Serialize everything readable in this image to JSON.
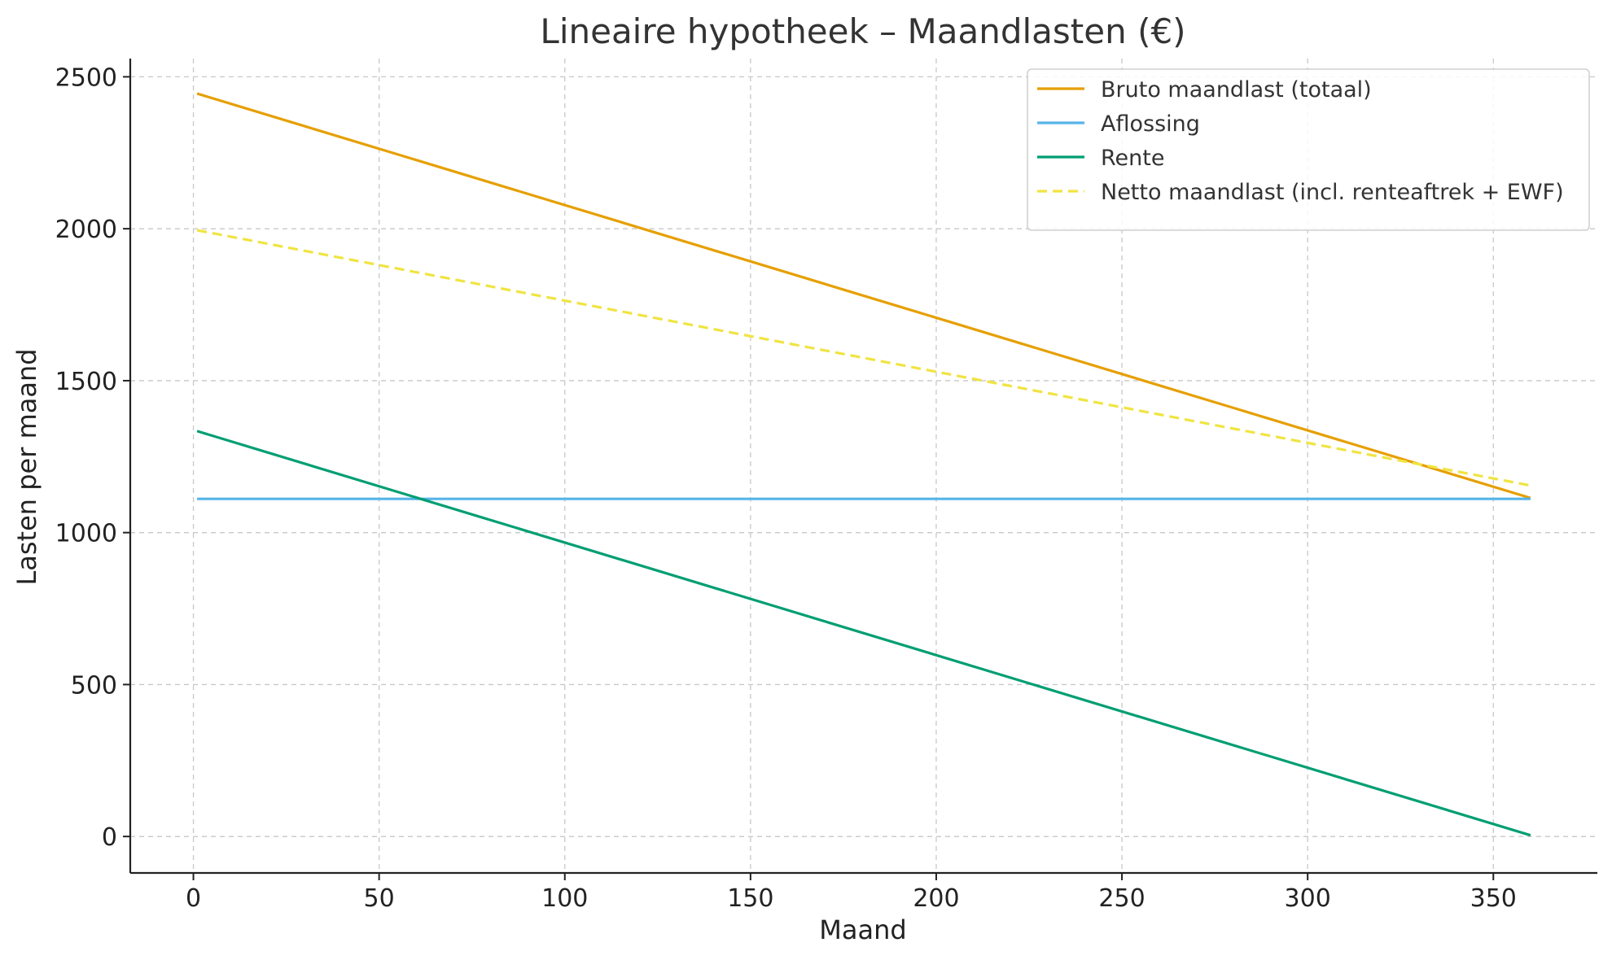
{
  "chart_data": {
    "type": "line",
    "title": "Lineaire hypotheek – Maandlasten (€)",
    "xlabel": "Maand",
    "ylabel": "Lasten per maand",
    "xlim": [
      -17,
      378
    ],
    "ylim": [
      -120,
      2560
    ],
    "xticks": [
      0,
      50,
      100,
      150,
      200,
      250,
      300,
      350
    ],
    "yticks": [
      0,
      500,
      1000,
      1500,
      2000,
      2500
    ],
    "grid": true,
    "legend_position": "top-right",
    "series": [
      {
        "name": "Bruto maandlast (totaal)",
        "color": "#E69F00",
        "dash": "solid",
        "x": [
          1,
          360
        ],
        "y": [
          2445,
          1114
        ]
      },
      {
        "name": "Aflossing",
        "color": "#56B4E9",
        "dash": "solid",
        "x": [
          1,
          360
        ],
        "y": [
          1111,
          1111
        ]
      },
      {
        "name": "Rente",
        "color": "#009E73",
        "dash": "solid",
        "x": [
          1,
          360
        ],
        "y": [
          1334,
          4
        ]
      },
      {
        "name": "Netto maandlast (incl. renteaftrek + EWF)",
        "color": "#F0E442",
        "dash": "dashed",
        "x": [
          1,
          360
        ],
        "y": [
          1995,
          1155
        ]
      }
    ]
  }
}
